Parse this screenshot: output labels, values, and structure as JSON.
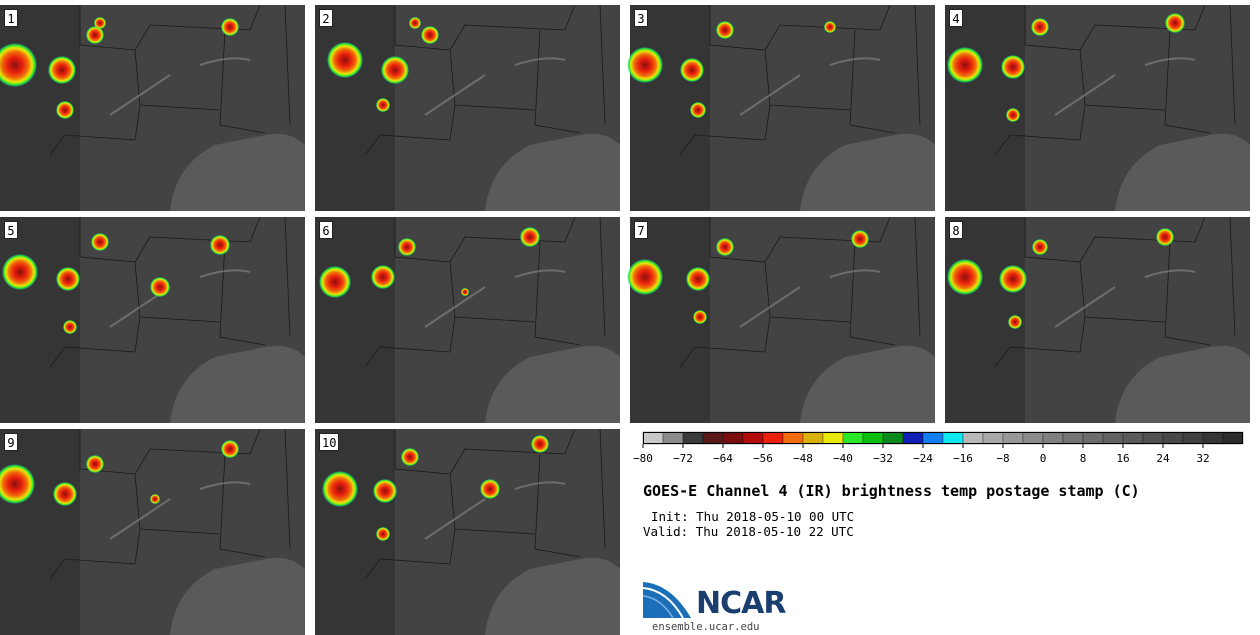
{
  "panels": [
    {
      "label": "1"
    },
    {
      "label": "2"
    },
    {
      "label": "3"
    },
    {
      "label": "4"
    },
    {
      "label": "5"
    },
    {
      "label": "6"
    },
    {
      "label": "7"
    },
    {
      "label": "8"
    },
    {
      "label": "9"
    },
    {
      "label": "10"
    }
  ],
  "colorbar": {
    "colors": [
      "#c8c8c8",
      "#8c8c8c",
      "#3a3a3a",
      "#5a1a1a",
      "#7a0d0d",
      "#b40c0c",
      "#e8200c",
      "#f06b0a",
      "#d8b00a",
      "#e8e80a",
      "#28e828",
      "#0ec00e",
      "#0a8a1a",
      "#1020b4",
      "#1080f0",
      "#10e8f0",
      "#b8b8b8",
      "#a8a8a8",
      "#989898",
      "#8c8c8c",
      "#808080",
      "#747474",
      "#6c6c6c",
      "#626262",
      "#5a5a5a",
      "#505050",
      "#484848",
      "#404040",
      "#363636",
      "#2c2c2c"
    ],
    "ticks": [
      "−80",
      "−72",
      "−64",
      "−56",
      "−48",
      "−40",
      "−32",
      "−24",
      "−16",
      "−8",
      "0",
      "8",
      "16",
      "24",
      "32"
    ]
  },
  "title": "GOES-E Channel 4 (IR) brightness temp postage stamp (C)",
  "init": "Init: Thu 2018-05-10 00 UTC",
  "valid": "Valid: Thu 2018-05-10 22 UTC",
  "logo": {
    "name": "NCAR",
    "site": "ensemble.ucar.edu"
  }
}
